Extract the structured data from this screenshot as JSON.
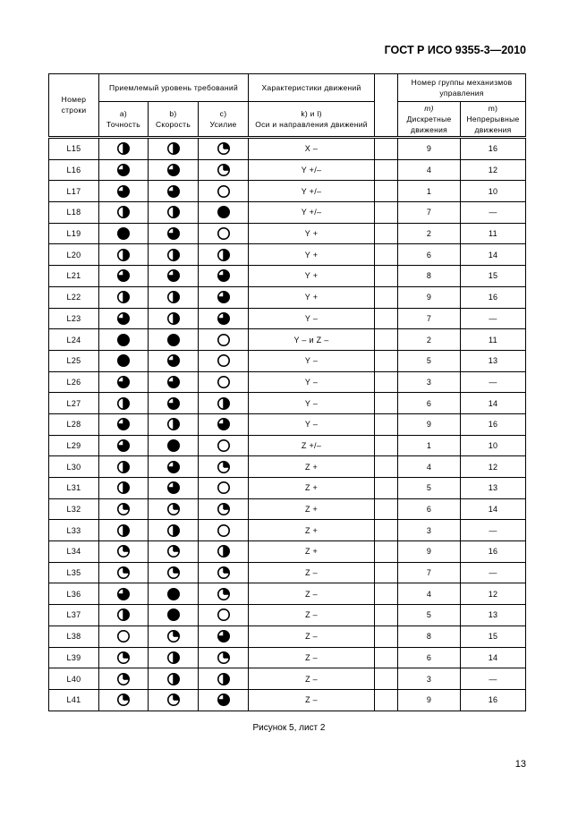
{
  "doc_header": "ГОСТ Р ИСО 9355-3—2010",
  "table": {
    "header": {
      "row_number": "Номер строки",
      "requirements_group": "Приемлемый уровень требований",
      "accuracy_key": "a)",
      "accuracy": "Точность",
      "speed_key": "b)",
      "speed": "Скорость",
      "force_key": "c)",
      "force": "Усилие",
      "motion_group": "Характеристики движений",
      "axes_key": "k) и l)",
      "axes": "Оси и направления движений",
      "control_group": "Номер группы механизмов управления",
      "discrete_key": "m)",
      "discrete": "Дискретные движения",
      "continuous_key": "m)",
      "continuous": "Непрерывные движения"
    },
    "symbol_legend_fill": "0 = empty circle, 0.25 = quarter, 0.5 = half, 0.75 = three-quarter, 1 = full",
    "rows": [
      {
        "id": "L15",
        "a": 0.5,
        "b": 0.5,
        "c": 0.25,
        "axes": "X –",
        "discrete": "9",
        "continuous": "16"
      },
      {
        "id": "L16",
        "a": 0.75,
        "b": 0.75,
        "c": 0.25,
        "axes": "Y +/–",
        "discrete": "4",
        "continuous": "12"
      },
      {
        "id": "L17",
        "a": 0.75,
        "b": 0.75,
        "c": 0,
        "axes": "Y +/–",
        "discrete": "1",
        "continuous": "10"
      },
      {
        "id": "L18",
        "a": 0.5,
        "b": 0.5,
        "c": 1,
        "axes": "Y +/–",
        "discrete": "7",
        "continuous": "—"
      },
      {
        "id": "L19",
        "a": 1,
        "b": 0.75,
        "c": 0,
        "axes": "Y +",
        "discrete": "2",
        "continuous": "11"
      },
      {
        "id": "L20",
        "a": 0.5,
        "b": 0.5,
        "c": 0.5,
        "axes": "Y +",
        "discrete": "6",
        "continuous": "14"
      },
      {
        "id": "L21",
        "a": 0.75,
        "b": 0.75,
        "c": 0.75,
        "axes": "Y +",
        "discrete": "8",
        "continuous": "15"
      },
      {
        "id": "L22",
        "a": 0.5,
        "b": 0.5,
        "c": 0.75,
        "axes": "Y +",
        "discrete": "9",
        "continuous": "16"
      },
      {
        "id": "L23",
        "a": 0.75,
        "b": 0.5,
        "c": 0.75,
        "axes": "Y –",
        "discrete": "7",
        "continuous": "—"
      },
      {
        "id": "L24",
        "a": 1,
        "b": 1,
        "c": 0,
        "axes": "Y – и Z –",
        "discrete": "2",
        "continuous": "11"
      },
      {
        "id": "L25",
        "a": 1,
        "b": 0.75,
        "c": 0,
        "axes": "Y –",
        "discrete": "5",
        "continuous": "13"
      },
      {
        "id": "L26",
        "a": 0.75,
        "b": 0.75,
        "c": 0,
        "axes": "Y –",
        "discrete": "3",
        "continuous": "—"
      },
      {
        "id": "L27",
        "a": 0.5,
        "b": 0.75,
        "c": 0.5,
        "axes": "Y –",
        "discrete": "6",
        "continuous": "14"
      },
      {
        "id": "L28",
        "a": 0.75,
        "b": 0.5,
        "c": 0.75,
        "axes": "Y –",
        "discrete": "9",
        "continuous": "16"
      },
      {
        "id": "L29",
        "a": 0.75,
        "b": 1,
        "c": 0,
        "axes": "Z +/–",
        "discrete": "1",
        "continuous": "10"
      },
      {
        "id": "L30",
        "a": 0.5,
        "b": 0.75,
        "c": 0.25,
        "axes": "Z +",
        "discrete": "4",
        "continuous": "12"
      },
      {
        "id": "L31",
        "a": 0.5,
        "b": 0.75,
        "c": 0,
        "axes": "Z +",
        "discrete": "5",
        "continuous": "13"
      },
      {
        "id": "L32",
        "a": 0.25,
        "b": 0.25,
        "c": 0.25,
        "axes": "Z +",
        "discrete": "6",
        "continuous": "14"
      },
      {
        "id": "L33",
        "a": 0.5,
        "b": 0.5,
        "c": 0,
        "axes": "Z +",
        "discrete": "3",
        "continuous": "—"
      },
      {
        "id": "L34",
        "a": 0.25,
        "b": 0.25,
        "c": 0.5,
        "axes": "Z +",
        "discrete": "9",
        "continuous": "16"
      },
      {
        "id": "L35",
        "a": 0.25,
        "b": 0.25,
        "c": 0.25,
        "axes": "Z –",
        "discrete": "7",
        "continuous": "—"
      },
      {
        "id": "L36",
        "a": 0.75,
        "b": 1,
        "c": 0.25,
        "axes": "Z –",
        "discrete": "4",
        "continuous": "12"
      },
      {
        "id": "L37",
        "a": 0.5,
        "b": 1,
        "c": 0,
        "axes": "Z –",
        "discrete": "5",
        "continuous": "13"
      },
      {
        "id": "L38",
        "a": 0,
        "b": 0.25,
        "c": 0.75,
        "axes": "Z –",
        "discrete": "8",
        "continuous": "15"
      },
      {
        "id": "L39",
        "a": 0.25,
        "b": 0.5,
        "c": 0.25,
        "axes": "Z –",
        "discrete": "6",
        "continuous": "14"
      },
      {
        "id": "L40",
        "a": 0.25,
        "b": 0.5,
        "c": 0.5,
        "axes": "Z –",
        "discrete": "3",
        "continuous": "—"
      },
      {
        "id": "L41",
        "a": 0.25,
        "b": 0.25,
        "c": 0.75,
        "axes": "Z –",
        "discrete": "9",
        "continuous": "16"
      }
    ]
  },
  "caption": "Рисунок 5, лист 2",
  "page_number": "13"
}
